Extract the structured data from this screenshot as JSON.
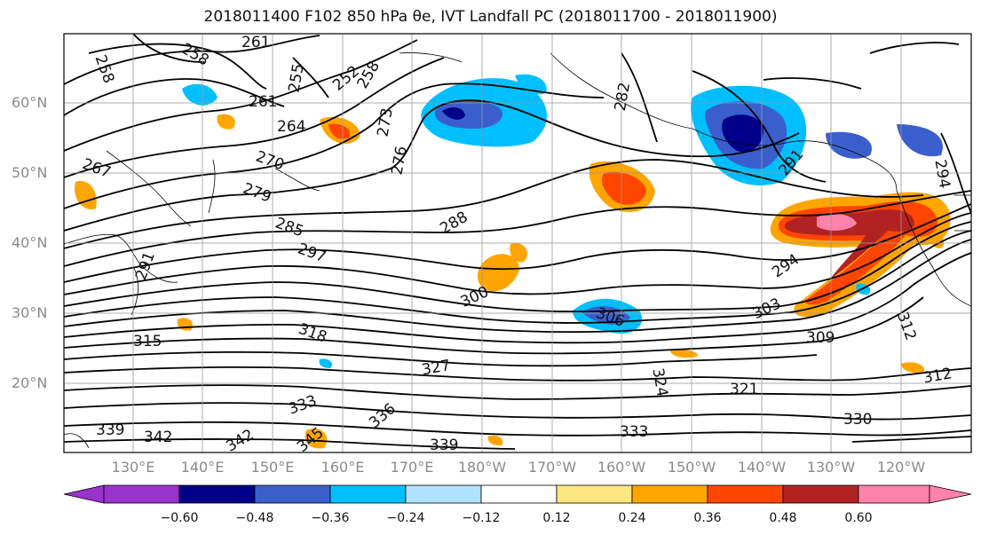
{
  "title": "2018011400 F102 850 hPa θe, IVT Landfall PC (2018011700 - 2018011900)",
  "lat_labels": [
    "60°N",
    "50°N",
    "40°N",
    "30°N",
    "20°N"
  ],
  "lon_labels": [
    "130°E",
    "140°E",
    "150°E",
    "160°E",
    "170°E",
    "180°W",
    "170°W",
    "160°W",
    "150°W",
    "140°W",
    "130°W",
    "120°W"
  ],
  "contour_labels": [
    "261",
    "258",
    "258",
    "255",
    "252",
    "258",
    "261",
    "264",
    "273",
    "276",
    "270",
    "267",
    "279",
    "282",
    "285",
    "288",
    "291",
    "297",
    "294",
    "291",
    "294",
    "300",
    "303",
    "306",
    "309",
    "312",
    "315",
    "318",
    "321",
    "324",
    "327",
    "330",
    "333",
    "336",
    "339",
    "342",
    "345",
    "342",
    "339",
    "333",
    "312"
  ],
  "colorbar": {
    "tick_labels": [
      "−0.60",
      "−0.48",
      "−0.36",
      "−0.24",
      "−0.12",
      "0.12",
      "0.24",
      "0.36",
      "0.48",
      "0.60"
    ],
    "colors": [
      "#9a32cd",
      "#00008b",
      "#3a5fcd",
      "#00bfff",
      "#b0e2ff",
      "#ffffff",
      "#ffe680",
      "#ffa500",
      "#ff4500",
      "#b22222",
      "#ff82ab"
    ]
  },
  "chart_data": {
    "type": "map",
    "variable": "850 hPa θe contours (K) with IVT landfall principal component shading",
    "lat_range": [
      "10°N",
      "70°N"
    ],
    "lon_range": [
      "120°E",
      "115°W"
    ],
    "colorbar_levels": [
      -0.6,
      -0.48,
      -0.36,
      -0.24,
      -0.12,
      0.12,
      0.24,
      0.36,
      0.48,
      0.6
    ]
  }
}
